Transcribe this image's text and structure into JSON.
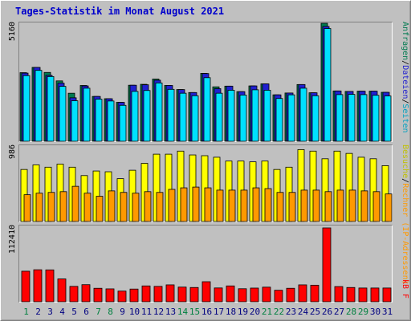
{
  "title": "Tages-Statistik im Monat August 2021",
  "colors": {
    "background": "#c0c0c0",
    "border_dark": "#808080",
    "border_light": "#ffffff",
    "plot_bg": "#c0c0c0",
    "title": "#0000cc",
    "day_weekday": "#000080",
    "day_weekend": "#008040",
    "anfragen": "#007a50",
    "dateien": "#2020d0",
    "seiten": "#00e0ff",
    "besuche": "#ffff00",
    "rechner": "#ff9900",
    "kbytes": "#ff0000"
  },
  "right_labels": {
    "anfragen": "Anfragen",
    "dateien": "Dateien",
    "seiten": "Seiten",
    "besuche": "Besuche",
    "rechner": "Rechner (IP-Adressen)",
    "separator": "/",
    "kbytes": "kB F"
  },
  "chart_data": {
    "type": "bar",
    "categories": [
      "1",
      "2",
      "3",
      "4",
      "5",
      "6",
      "7",
      "8",
      "9",
      "10",
      "11",
      "12",
      "13",
      "14",
      "15",
      "16",
      "17",
      "18",
      "19",
      "20",
      "21",
      "22",
      "23",
      "24",
      "25",
      "26",
      "27",
      "28",
      "29",
      "30",
      "31"
    ],
    "weekend_days": [
      "1",
      "7",
      "8",
      "14",
      "15",
      "21",
      "22",
      "28",
      "29"
    ],
    "panels": [
      {
        "id": "top",
        "ymax_label": "5160",
        "ylim": [
          0,
          5160
        ],
        "series": [
          {
            "name": "Anfragen",
            "values": [
              3000,
              3230,
              3010,
              2640,
              2100,
              2440,
              1960,
              1860,
              1700,
              2450,
              2490,
              2720,
              2440,
              2260,
              2130,
              2970,
              2380,
              2410,
              2170,
              2420,
              2510,
              2030,
              2110,
              2480,
              2120,
              5160,
              2200,
              2180,
              2190,
              2190,
              2140
            ]
          },
          {
            "name": "Dateien",
            "values": [
              2980,
              3230,
              2880,
              2540,
              1900,
              2420,
              1960,
              1860,
              1700,
              2450,
              2470,
              2670,
              2440,
              2260,
              2130,
              2960,
              2300,
              2410,
              2170,
              2420,
              2510,
              2030,
              2110,
              2480,
              2120,
              5020,
              2200,
              2180,
              2190,
              2190,
              2140
            ]
          },
          {
            "name": "Seiten",
            "values": [
              2870,
              3100,
              2830,
              2400,
              1770,
              2320,
              1840,
              1760,
              1570,
              2180,
              2220,
              2550,
              2270,
              2100,
              1990,
              2780,
              2100,
              2230,
              2020,
              2250,
              2230,
              1870,
              2030,
              2320,
              1990,
              4930,
              2040,
              2050,
              2040,
              2010,
              1980
            ]
          }
        ]
      },
      {
        "id": "middle",
        "ymax_label": "986",
        "ylim": [
          0,
          986
        ],
        "series": [
          {
            "name": "Besuche",
            "values": [
              680,
              740,
              710,
              750,
              710,
              600,
              660,
              650,
              560,
              670,
              760,
              880,
              880,
              920,
              870,
              860,
              840,
              790,
              790,
              780,
              790,
              680,
              710,
              940,
              920,
              820,
              920,
              890,
              840,
              820,
              730
            ]
          },
          {
            "name": "Rechner (IP-Adressen)",
            "values": [
              350,
              370,
              380,
              390,
              460,
              370,
              330,
              400,
              380,
              370,
              390,
              380,
              420,
              440,
              450,
              440,
              410,
              410,
              410,
              440,
              430,
              380,
              380,
              410,
              410,
              390,
              410,
              410,
              400,
              390,
              360
            ]
          }
        ]
      },
      {
        "id": "bottom",
        "ymax_label": "112410",
        "ylim": [
          0,
          112410
        ],
        "series": [
          {
            "name": "kB F",
            "values": [
              46500,
              48700,
              48500,
              34700,
              23400,
              26000,
              20500,
              19600,
              16200,
              19300,
              24100,
              23400,
              25700,
              22300,
              21700,
              30500,
              21000,
              24100,
              19800,
              20800,
              22200,
              17500,
              20500,
              25700,
              25200,
              112410,
              23100,
              21700,
              20900,
              20900,
              20900
            ]
          }
        ]
      }
    ]
  }
}
